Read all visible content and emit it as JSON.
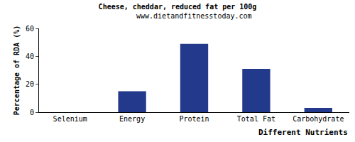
{
  "chart_data": {
    "type": "bar",
    "title": "Cheese, cheddar, reduced fat per 100g",
    "subtitle": "www.dietandfitnesstoday.com",
    "x_label": "Different Nutrients",
    "y_label": "Percentage of RDA (%)",
    "categories": [
      "Selenium",
      "Energy",
      "Protein",
      "Total Fat",
      "Carbohydrate"
    ],
    "values": [
      0,
      15,
      49,
      31,
      3
    ],
    "color": "#233a8c",
    "ylim": [
      0,
      60
    ],
    "yticks": [
      0,
      20,
      40,
      60
    ],
    "grid": false
  }
}
